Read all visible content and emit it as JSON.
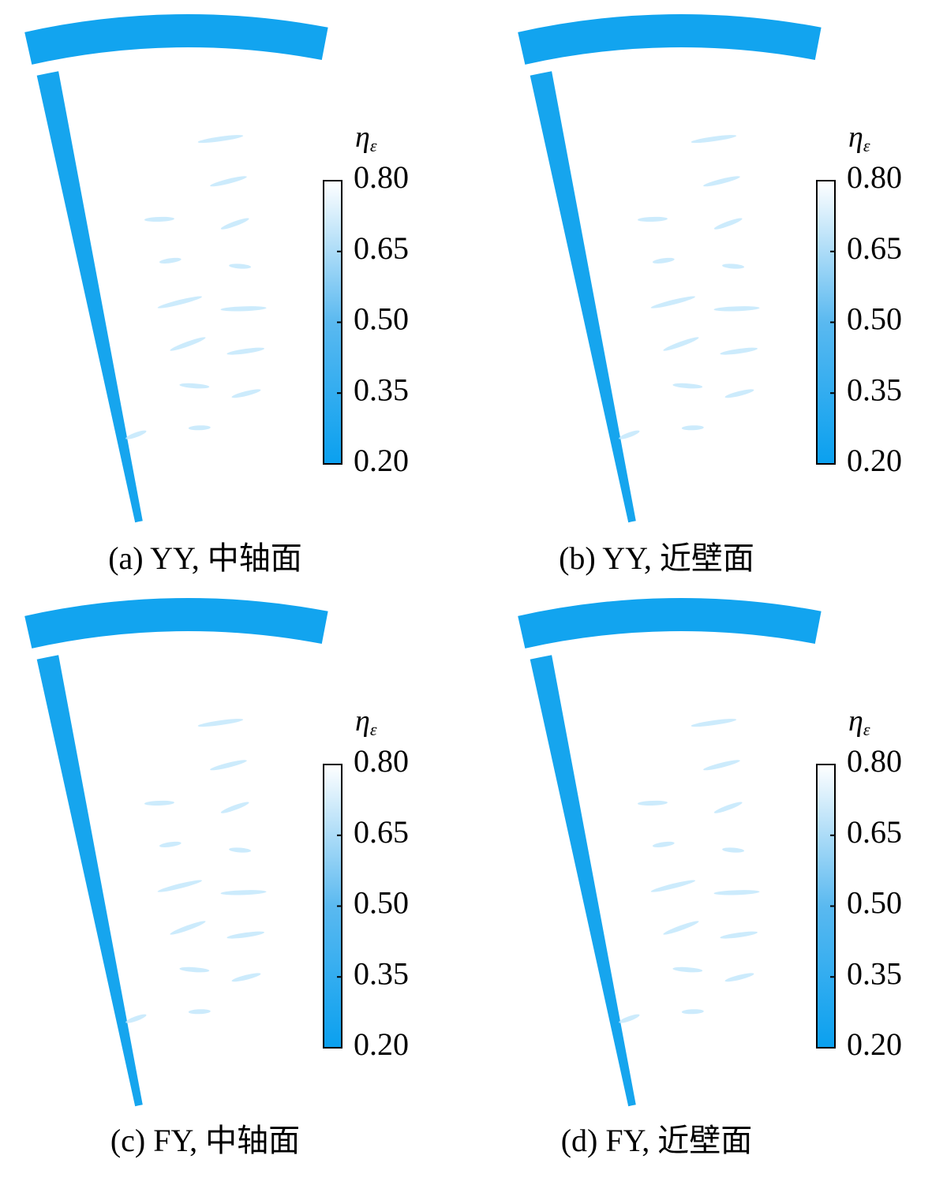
{
  "panels": [
    {
      "caption": "(a) YY, 中轴面",
      "colorbar": {
        "symbol": "η",
        "subscript": "ε",
        "lim": [
          0.2,
          0.8
        ],
        "ticks": [
          {
            "value": 0.2,
            "label": "0.20"
          },
          {
            "value": 0.35,
            "label": "0.35"
          },
          {
            "value": 0.5,
            "label": "0.50"
          },
          {
            "value": 0.65,
            "label": "0.65"
          },
          {
            "value": 0.8,
            "label": "0.80"
          }
        ]
      }
    },
    {
      "caption": "(b) YY, 近壁面",
      "colorbar": {
        "symbol": "η",
        "subscript": "ε",
        "lim": [
          0.2,
          0.8
        ],
        "ticks": [
          {
            "value": 0.2,
            "label": "0.20"
          },
          {
            "value": 0.35,
            "label": "0.35"
          },
          {
            "value": 0.5,
            "label": "0.50"
          },
          {
            "value": 0.65,
            "label": "0.65"
          },
          {
            "value": 0.8,
            "label": "0.80"
          }
        ]
      }
    },
    {
      "caption": "(c) FY, 中轴面",
      "colorbar": {
        "symbol": "η",
        "subscript": "ε",
        "lim": [
          0.2,
          0.8
        ],
        "ticks": [
          {
            "value": 0.2,
            "label": "0.20"
          },
          {
            "value": 0.35,
            "label": "0.35"
          },
          {
            "value": 0.5,
            "label": "0.50"
          },
          {
            "value": 0.65,
            "label": "0.65"
          },
          {
            "value": 0.8,
            "label": "0.80"
          }
        ]
      }
    },
    {
      "caption": "(d) FY, 近壁面",
      "colorbar": {
        "symbol": "η",
        "subscript": "ε",
        "lim": [
          0.2,
          0.8
        ],
        "ticks": [
          {
            "value": 0.2,
            "label": "0.20"
          },
          {
            "value": 0.35,
            "label": "0.35"
          },
          {
            "value": 0.5,
            "label": "0.50"
          },
          {
            "value": 0.65,
            "label": "0.65"
          },
          {
            "value": 0.8,
            "label": "0.80"
          }
        ]
      }
    }
  ]
}
